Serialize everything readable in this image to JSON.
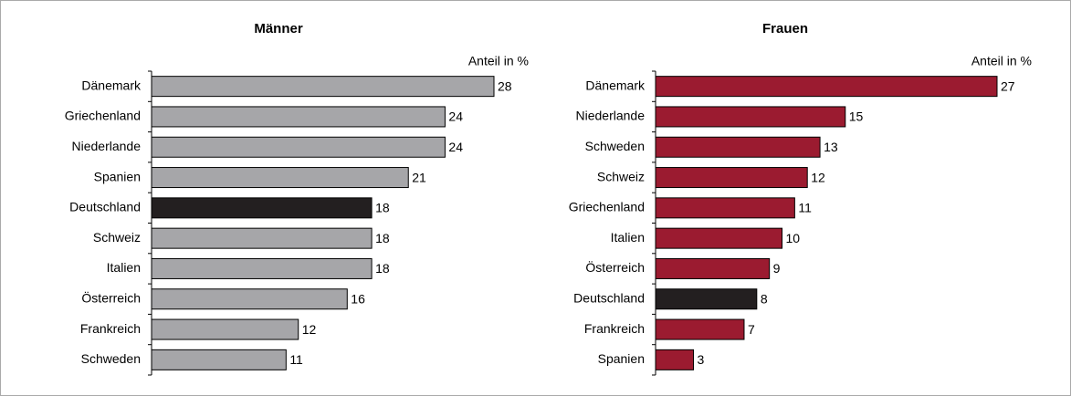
{
  "chart_data": [
    {
      "type": "bar",
      "orientation": "horizontal",
      "title": "Männer",
      "annotation": "Anteil in %",
      "categories": [
        "Dänemark",
        "Griechenland",
        "Niederlande",
        "Spanien",
        "Deutschland",
        "Schweiz",
        "Italien",
        "Österreich",
        "Frankreich",
        "Schweden"
      ],
      "values": [
        28,
        24,
        24,
        21,
        18,
        18,
        18,
        16,
        12,
        11
      ],
      "colors": [
        "#a6a6a9",
        "#a6a6a9",
        "#a6a6a9",
        "#a6a6a9",
        "#231f20",
        "#a6a6a9",
        "#a6a6a9",
        "#a6a6a9",
        "#a6a6a9",
        "#a6a6a9"
      ]
    },
    {
      "type": "bar",
      "orientation": "horizontal",
      "title": "Frauen",
      "annotation": "Anteil in %",
      "categories": [
        "Dänemark",
        "Niederlande",
        "Schweden",
        "Schweiz",
        "Griechenland",
        "Italien",
        "Österreich",
        "Deutschland",
        "Frankreich",
        "Spanien"
      ],
      "values": [
        27,
        15,
        13,
        12,
        11,
        10,
        9,
        8,
        7,
        3
      ],
      "colors": [
        "#9b1b30",
        "#9b1b30",
        "#9b1b30",
        "#9b1b30",
        "#9b1b30",
        "#9b1b30",
        "#9b1b30",
        "#231f20",
        "#9b1b30",
        "#9b1b30"
      ]
    }
  ]
}
